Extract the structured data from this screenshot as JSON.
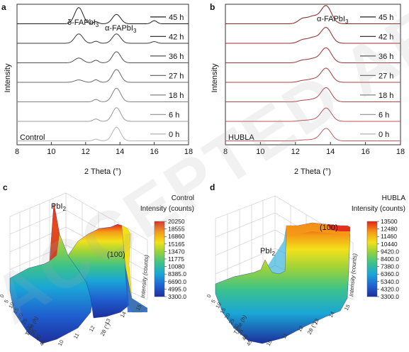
{
  "panels": {
    "a": {
      "letter": "a",
      "sample": "Control",
      "peak_labels": [
        "δ-FAPbI3",
        "α-FAPbI3"
      ],
      "y_label": "Intensity",
      "x_label": "2 Theta (°)",
      "x_ticks": [
        "8",
        "10",
        "12",
        "14",
        "16",
        "18"
      ]
    },
    "b": {
      "letter": "b",
      "sample": "HUBLA",
      "peak_labels": [
        "α-FAPbI3"
      ],
      "y_label": "Intensity",
      "x_label": "2 Theta (°)",
      "x_ticks": [
        "8",
        "10",
        "12",
        "14",
        "16",
        "18"
      ]
    },
    "c": {
      "letter": "c",
      "title_line1": "Control",
      "title_line2": "Intensity (counts)",
      "peak_labels": [
        "PbI2",
        "(100)"
      ],
      "colorbar_ticks": [
        "20250",
        "18555",
        "16860",
        "15165",
        "13470",
        "11775",
        "10080",
        "8385.0",
        "6690.0",
        "4995.0",
        "3300.0"
      ],
      "z_label": "Intensity (counts)",
      "theta_label": "2θ (°)",
      "time_label": "Time (h)"
    },
    "d": {
      "letter": "d",
      "title_line1": "HUBLA",
      "title_line2": "Intensity (counts)",
      "peak_labels": [
        "PbI2",
        "(100)"
      ],
      "colorbar_ticks": [
        "13500",
        "12480",
        "11460",
        "10440",
        "9420.0",
        "8400.0",
        "7380.0",
        "6360.0",
        "5340.0",
        "4320.0",
        "3300.0"
      ],
      "z_label": "Intensity (counts)",
      "theta_label": "2θ (°)",
      "time_label": "Time (h)"
    }
  },
  "colors": {
    "trace_dark": "#222222",
    "trace_light": "#b0b0b0",
    "fit_red": "#d42a2a",
    "colormap": [
      "#1c2f9c",
      "#1f5fd0",
      "#1aa6d6",
      "#3cc28a",
      "#9bd23a",
      "#f2e11a",
      "#f59a17",
      "#e2251c"
    ]
  },
  "watermark": "ACCEPTED ARTICLE PREVIEW",
  "chart_data": [
    {
      "type": "line",
      "panel": "a",
      "title": "",
      "xlabel": "2 Theta (°)",
      "ylabel": "Intensity",
      "xlim": [
        8,
        18
      ],
      "legend_position": "right, inline",
      "series": [
        {
          "name": "45 h",
          "peaks": [
            {
              "center": 11.6,
              "height": 0.95,
              "width": 0.24
            },
            {
              "center": 12.6,
              "height": 0.12,
              "width": 0.15
            },
            {
              "center": 13.8,
              "height": 0.55,
              "width": 0.24
            },
            {
              "center": 16.0,
              "height": 0.18,
              "width": 0.16
            }
          ]
        },
        {
          "name": "42 h",
          "peaks": [
            {
              "center": 11.6,
              "height": 0.55,
              "width": 0.24
            },
            {
              "center": 12.6,
              "height": 0.12,
              "width": 0.15
            },
            {
              "center": 13.8,
              "height": 0.55,
              "width": 0.24
            },
            {
              "center": 16.0,
              "height": 0.1,
              "width": 0.16
            }
          ]
        },
        {
          "name": "36 h",
          "peaks": [
            {
              "center": 11.6,
              "height": 0.28,
              "width": 0.24
            },
            {
              "center": 12.6,
              "height": 0.15,
              "width": 0.15
            },
            {
              "center": 13.8,
              "height": 0.65,
              "width": 0.24
            }
          ]
        },
        {
          "name": "27 h",
          "peaks": [
            {
              "center": 11.6,
              "height": 0.14,
              "width": 0.24
            },
            {
              "center": 12.6,
              "height": 0.15,
              "width": 0.15
            },
            {
              "center": 13.8,
              "height": 0.75,
              "width": 0.24
            }
          ]
        },
        {
          "name": "18 h",
          "peaks": [
            {
              "center": 12.6,
              "height": 0.14,
              "width": 0.15
            },
            {
              "center": 13.8,
              "height": 0.8,
              "width": 0.24
            }
          ]
        },
        {
          "name": "6 h",
          "peaks": [
            {
              "center": 12.6,
              "height": 0.14,
              "width": 0.15
            },
            {
              "center": 13.8,
              "height": 0.8,
              "width": 0.24
            }
          ]
        },
        {
          "name": "0 h",
          "peaks": [
            {
              "center": 12.6,
              "height": 0.1,
              "width": 0.15
            },
            {
              "center": 13.8,
              "height": 0.8,
              "width": 0.24
            }
          ]
        }
      ]
    },
    {
      "type": "line",
      "panel": "b",
      "title": "",
      "xlabel": "2 Theta (°)",
      "ylabel": "Intensity",
      "xlim": [
        8,
        18
      ],
      "legend_position": "right, inline",
      "series": [
        {
          "name": "45 h",
          "peaks": [
            {
              "center": 12.4,
              "height": 0.3,
              "width": 0.25
            },
            {
              "center": 13.0,
              "height": 0.45,
              "width": 0.3
            },
            {
              "center": 13.75,
              "height": 1.15,
              "width": 0.3
            }
          ]
        },
        {
          "name": "42 h",
          "peaks": [
            {
              "center": 12.4,
              "height": 0.2,
              "width": 0.25
            },
            {
              "center": 13.0,
              "height": 0.35,
              "width": 0.3
            },
            {
              "center": 13.75,
              "height": 1.0,
              "width": 0.3
            }
          ]
        },
        {
          "name": "36 h",
          "peaks": [
            {
              "center": 12.4,
              "height": 0.15,
              "width": 0.25
            },
            {
              "center": 13.0,
              "height": 0.25,
              "width": 0.3
            },
            {
              "center": 13.75,
              "height": 0.95,
              "width": 0.3
            }
          ]
        },
        {
          "name": "27 h",
          "peaks": [
            {
              "center": 12.4,
              "height": 0.1,
              "width": 0.25
            },
            {
              "center": 13.0,
              "height": 0.2,
              "width": 0.3
            },
            {
              "center": 13.75,
              "height": 0.9,
              "width": 0.3
            }
          ]
        },
        {
          "name": "18 h",
          "peaks": [
            {
              "center": 12.4,
              "height": 0.08,
              "width": 0.25
            },
            {
              "center": 13.0,
              "height": 0.15,
              "width": 0.3
            },
            {
              "center": 13.75,
              "height": 0.9,
              "width": 0.3
            }
          ]
        },
        {
          "name": "6 h",
          "peaks": [
            {
              "center": 12.4,
              "height": 0.05,
              "width": 0.25
            },
            {
              "center": 13.0,
              "height": 0.1,
              "width": 0.3
            },
            {
              "center": 13.75,
              "height": 0.85,
              "width": 0.3
            }
          ]
        },
        {
          "name": "0 h",
          "peaks": [
            {
              "center": 12.4,
              "height": 0.05,
              "width": 0.25
            },
            {
              "center": 13.0,
              "height": 0.08,
              "width": 0.3
            },
            {
              "center": 13.75,
              "height": 0.8,
              "width": 0.3
            }
          ]
        }
      ]
    },
    {
      "type": "surface3d",
      "panel": "c",
      "title": "Control",
      "colorbar_label": "Intensity (counts)",
      "zlim": [
        3300,
        20250
      ],
      "peaks": [
        "PbI2",
        "(100)"
      ]
    },
    {
      "type": "surface3d",
      "panel": "d",
      "title": "HUBLA",
      "colorbar_label": "Intensity (counts)",
      "zlim": [
        3300,
        13500
      ],
      "peaks": [
        "PbI2",
        "(100)"
      ]
    }
  ]
}
